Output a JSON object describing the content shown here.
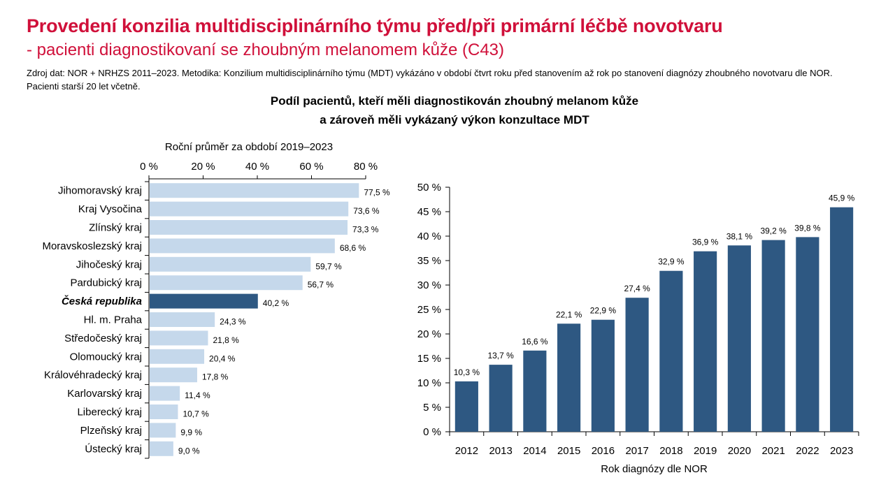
{
  "page": {
    "title": "Provedení konzilia multidisciplinárního týmu před/při primární léčbě novotvaru",
    "subtitle": "- pacienti diagnostikovaní se zhoubným melanomem kůže (C43)",
    "source": "Zdroj dat: NOR + NRHZS 2011–2023. Metodika: Konzilium multidisciplinárního týmu (MDT) vykázáno v období čtvrt roku před stanovením až rok po stanovení diagnózy zhoubného novotvaru dle NOR. Pacienti starší 20 let včetně.",
    "chart_title_line1": "Podíl pacientů, kteří měli diagnostikován zhoubný melanom kůže",
    "chart_title_line2": "a zároveň měli vykázaný výkon konzultace MDT"
  },
  "colors": {
    "title": "#d0103a",
    "bar_light": "#c5d8eb",
    "bar_dark": "#2e5882",
    "axis": "#000000"
  },
  "chart_data": [
    {
      "type": "bar",
      "orientation": "horizontal",
      "title": "Roční průměr za období 2019–2023",
      "categories": [
        "Jihomoravský kraj",
        "Kraj Vysočina",
        "Zlínský kraj",
        "Moravskoslezský kraj",
        "Jihočeský kraj",
        "Pardubický kraj",
        "Česká republika",
        "Hl. m. Praha",
        "Středočeský kraj",
        "Olomoucký kraj",
        "Královéhradecký kraj",
        "Karlovarský kraj",
        "Liberecký kraj",
        "Plzeňský kraj",
        "Ústecký kraj"
      ],
      "values": [
        77.5,
        73.6,
        73.3,
        68.6,
        59.7,
        56.7,
        40.2,
        24.3,
        21.8,
        20.4,
        17.8,
        11.4,
        10.7,
        9.9,
        9.0
      ],
      "value_labels": [
        "77,5 %",
        "73,6 %",
        "73,3 %",
        "68,6 %",
        "59,7 %",
        "56,7 %",
        "40,2 %",
        "24,3 %",
        "21,8 %",
        "20,4 %",
        "17,8 %",
        "11,4 %",
        "10,7 %",
        "9,9 %",
        "9,0 %"
      ],
      "highlight": "Česká republika",
      "xlim": [
        0,
        80
      ],
      "x_ticks": [
        0,
        20,
        40,
        60,
        80
      ],
      "x_tick_labels": [
        "0 %",
        "20 %",
        "40 %",
        "60 %",
        "80 %"
      ],
      "axis_position": "top",
      "grid": false
    },
    {
      "type": "bar",
      "orientation": "vertical",
      "xlabel": "Rok diagnózy dle NOR",
      "categories": [
        "2012",
        "2013",
        "2014",
        "2015",
        "2016",
        "2017",
        "2018",
        "2019",
        "2020",
        "2021",
        "2022",
        "2023"
      ],
      "values": [
        10.3,
        13.7,
        16.6,
        22.1,
        22.9,
        27.4,
        32.9,
        36.9,
        38.1,
        39.2,
        39.8,
        45.9
      ],
      "value_labels": [
        "10,3 %",
        "13,7 %",
        "16,6 %",
        "22,1 %",
        "22,9 %",
        "27,4 %",
        "32,9 %",
        "36,9 %",
        "38,1 %",
        "39,2 %",
        "39,8 %",
        "45,9 %"
      ],
      "ylim": [
        0,
        50
      ],
      "y_ticks": [
        0,
        5,
        10,
        15,
        20,
        25,
        30,
        35,
        40,
        45,
        50
      ],
      "y_tick_labels": [
        "0 %",
        "5 %",
        "10 %",
        "15 %",
        "20 %",
        "25 %",
        "30 %",
        "35 %",
        "40 %",
        "45 %",
        "50 %"
      ],
      "grid": false
    }
  ]
}
